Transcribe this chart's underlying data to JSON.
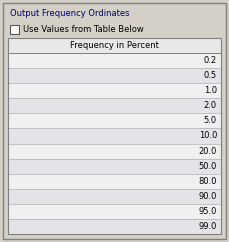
{
  "title": "Output Frequency Ordinates",
  "checkbox_label": "Use Values from Table Below",
  "column_header": "Frequency in Percent",
  "values": [
    "0.2",
    "0.5",
    "1.0",
    "2.0",
    "5.0",
    "10.0",
    "20.0",
    "50.0",
    "80.0",
    "90.0",
    "95.0",
    "99.0"
  ],
  "outer_bg": "#d4d0c8",
  "header_bg": "#e8e8e8",
  "row_bg_light": "#f0f0f0",
  "row_bg_dark": "#e4e4e8",
  "border_color": "#808080",
  "title_color": "#000080",
  "text_color": "#000000",
  "title_fontsize": 6.0,
  "header_fontsize": 6.0,
  "value_fontsize": 6.0,
  "checkbox_fontsize": 6.0
}
